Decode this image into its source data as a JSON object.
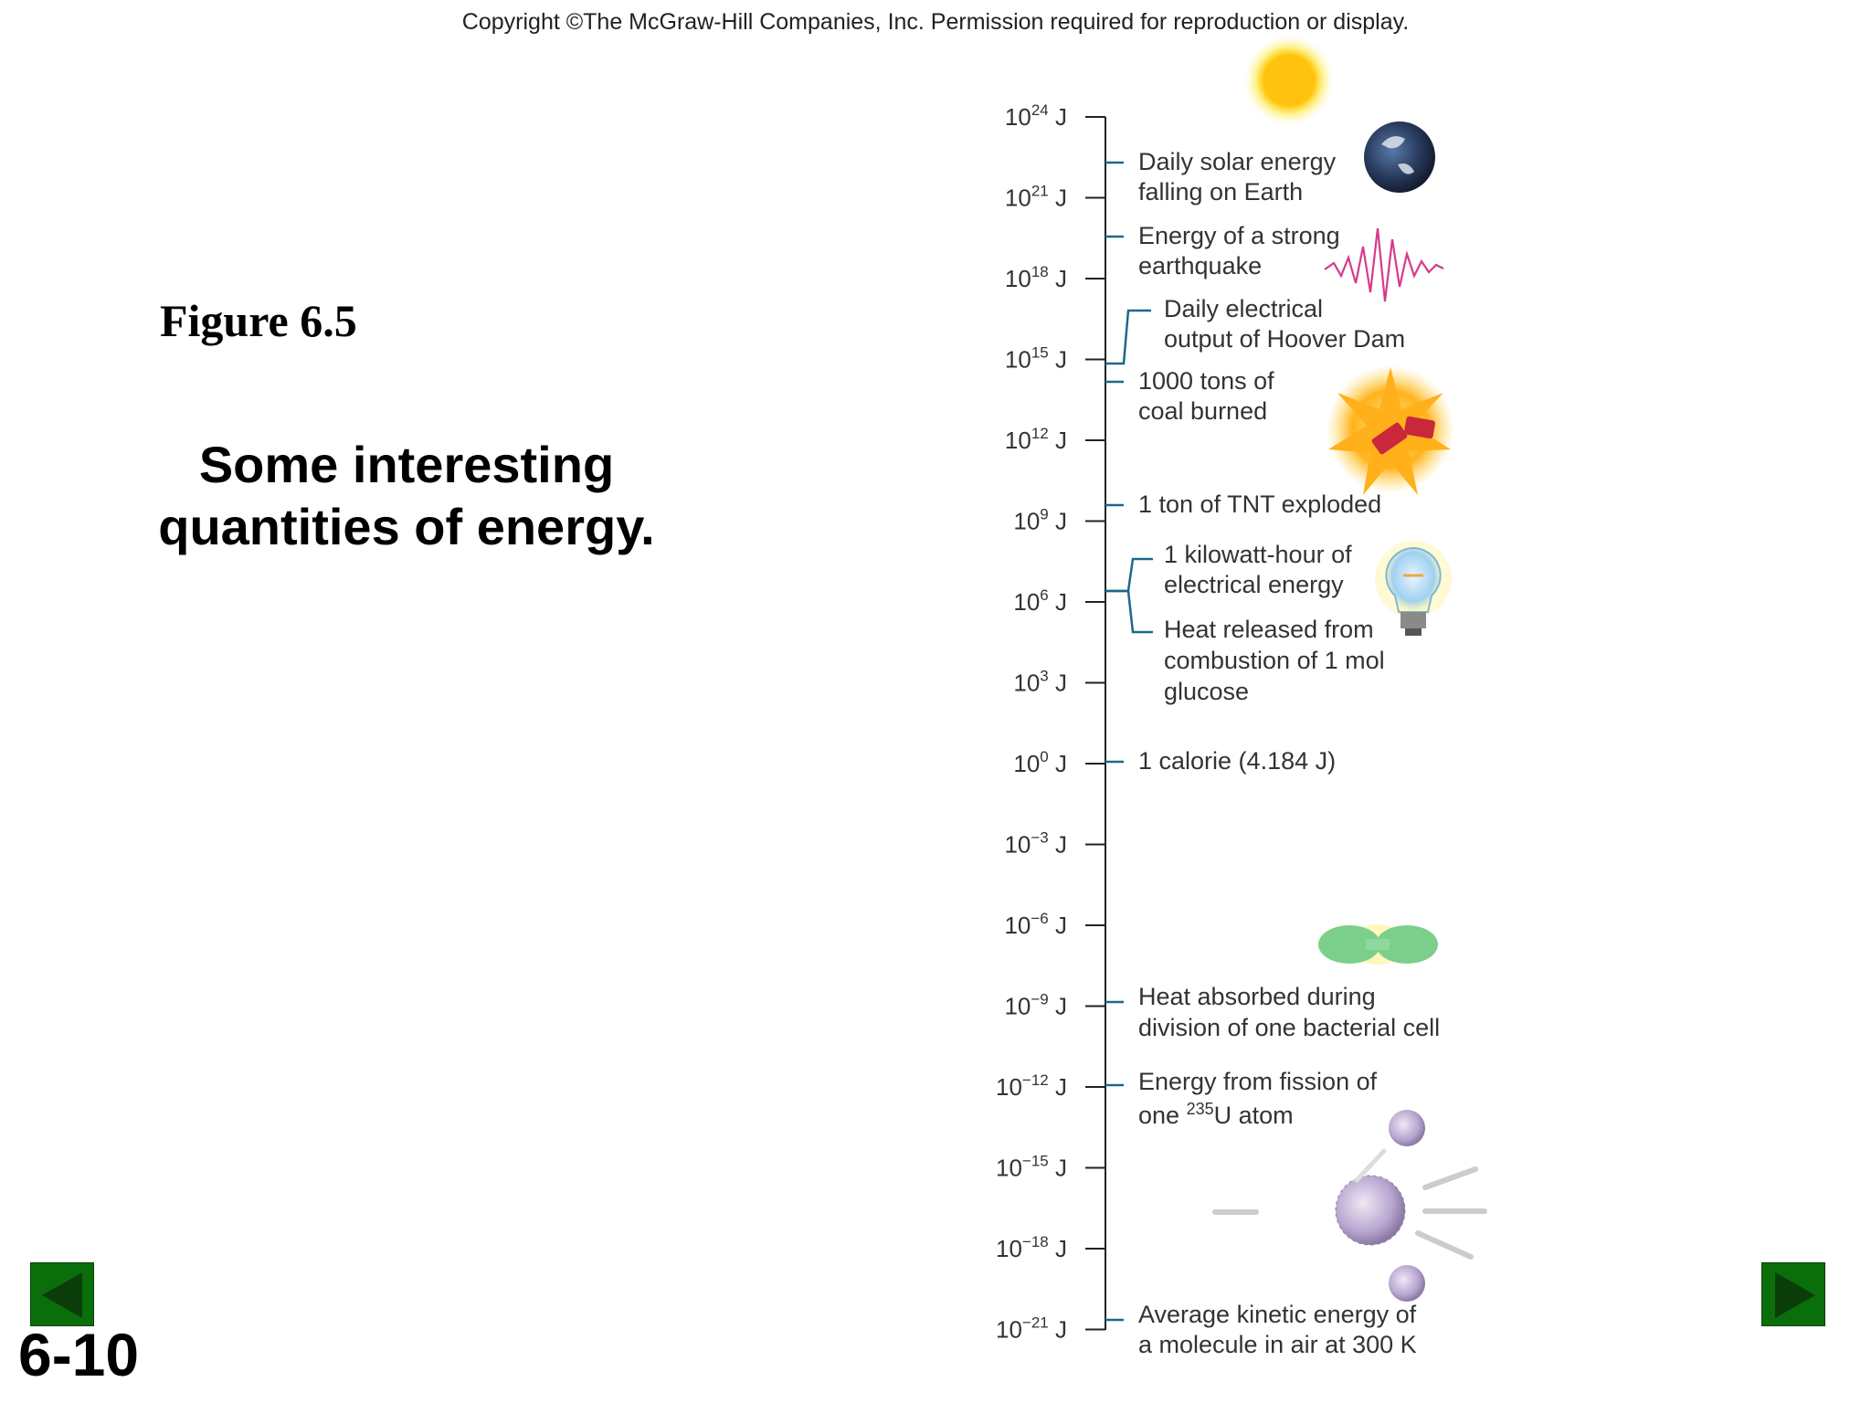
{
  "copyright": "Copyright ©The McGraw-Hill Companies, Inc.  Permission required for reproduction or display.",
  "figure_label": "Figure 6.5",
  "caption": "Some interesting quantities of energy.",
  "slide_number": "6-10",
  "scale": {
    "unit": "J",
    "base": "10",
    "exponents": [
      "24",
      "21",
      "18",
      "15",
      "12",
      "9",
      "6",
      "3",
      "0",
      "−3",
      "−6",
      "−9",
      "−12",
      "−15",
      "−18",
      "−21"
    ]
  },
  "items": [
    {
      "lines": [
        "Daily solar energy",
        "falling on Earth"
      ]
    },
    {
      "lines": [
        "Energy of a strong",
        "earthquake"
      ]
    },
    {
      "lines": [
        "Daily electrical",
        "output of Hoover Dam"
      ]
    },
    {
      "lines": [
        "1000 tons of",
        "coal burned"
      ]
    },
    {
      "lines": [
        "1 ton of TNT exploded"
      ]
    },
    {
      "lines": [
        "1 kilowatt-hour of",
        "electrical energy"
      ]
    },
    {
      "lines": [
        "Heat released from",
        "combustion of 1 mol",
        "glucose"
      ]
    },
    {
      "lines": [
        "1 calorie (4.184 J)"
      ]
    },
    {
      "lines": [
        "Heat absorbed during",
        "division of one bacterial cell"
      ]
    },
    {
      "lines": [
        "Energy from fission of"
      ],
      "line2_prefix": "one ",
      "line2_sup": "235",
      "line2_suffix": "U atom"
    },
    {
      "lines": [
        "Average kinetic energy of",
        "a molecule in air at 300 K"
      ]
    }
  ],
  "icons": [
    "sun-icon",
    "earth-icon",
    "seismograph-wave-icon",
    "explosion-dynamite-icon",
    "lightbulb-icon",
    "dividing-bacterium-icon",
    "uranium-fission-icon"
  ],
  "nav": {
    "prev": "previous-slide-arrow-icon",
    "next": "next-slide-arrow-icon"
  },
  "colors": {
    "tick_line": "#1a6a8a",
    "nav_green": "#0a6e0a",
    "wave": "#d63a8c"
  }
}
